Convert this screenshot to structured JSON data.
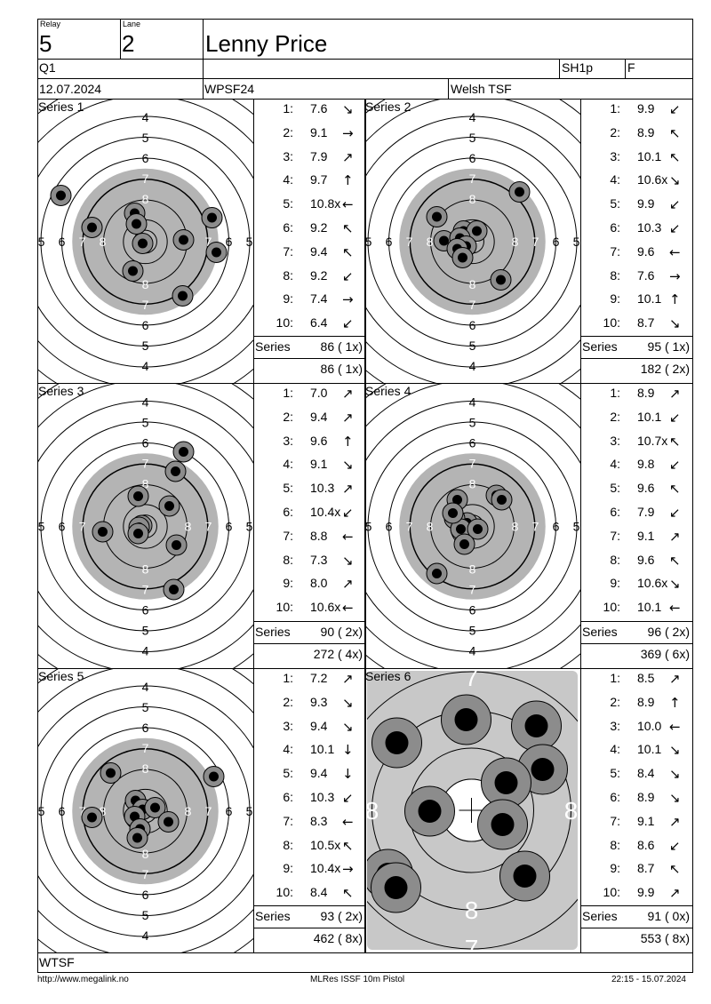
{
  "header": {
    "relay_label": "Relay",
    "relay": "5",
    "lane_label": "Lane",
    "lane": "2",
    "shooter": "Lenny Price",
    "class": "Q1",
    "discipline_code": "SH1p",
    "flag": "F",
    "date": "12.07.2024",
    "event": "WPSF24",
    "club": "Welsh TSF"
  },
  "series": [
    {
      "title": "Series 1",
      "shots": [
        {
          "no": "1:",
          "val": "7.6",
          "arrow": "↘"
        },
        {
          "no": "2:",
          "val": "9.1",
          "arrow": "→"
        },
        {
          "no": "3:",
          "val": "7.9",
          "arrow": "↗"
        },
        {
          "no": "4:",
          "val": "9.7",
          "arrow": "↑"
        },
        {
          "no": "5:",
          "val": "10.8x",
          "arrow": "←"
        },
        {
          "no": "6:",
          "val": "9.2",
          "arrow": "↖"
        },
        {
          "no": "7:",
          "val": "9.4",
          "arrow": "↖"
        },
        {
          "no": "8:",
          "val": "9.2",
          "arrow": "↙"
        },
        {
          "no": "9:",
          "val": "7.4",
          "arrow": "→"
        },
        {
          "no": "10:",
          "val": "6.4",
          "arrow": "↙"
        }
      ],
      "series_label": "Series",
      "series_total": "86 ( 1x)",
      "running_total": "86 ( 1x)"
    },
    {
      "title": "Series 2",
      "shots": [
        {
          "no": "1:",
          "val": "9.9",
          "arrow": "↙"
        },
        {
          "no": "2:",
          "val": "8.9",
          "arrow": "↖"
        },
        {
          "no": "3:",
          "val": "10.1",
          "arrow": "↖"
        },
        {
          "no": "4:",
          "val": "10.6x",
          "arrow": "↘"
        },
        {
          "no": "5:",
          "val": "9.9",
          "arrow": "↙"
        },
        {
          "no": "6:",
          "val": "10.3",
          "arrow": "↙"
        },
        {
          "no": "7:",
          "val": "9.6",
          "arrow": "←"
        },
        {
          "no": "8:",
          "val": "7.6",
          "arrow": "→"
        },
        {
          "no": "9:",
          "val": "10.1",
          "arrow": "↑"
        },
        {
          "no": "10:",
          "val": "8.7",
          "arrow": "↘"
        }
      ],
      "series_label": "Series",
      "series_total": "95 ( 1x)",
      "running_total": "182 ( 2x)"
    },
    {
      "title": "Series 3",
      "shots": [
        {
          "no": "1:",
          "val": "7.0",
          "arrow": "↗"
        },
        {
          "no": "2:",
          "val": "9.4",
          "arrow": "↗"
        },
        {
          "no": "3:",
          "val": "9.6",
          "arrow": "↑"
        },
        {
          "no": "4:",
          "val": "9.1",
          "arrow": "↘"
        },
        {
          "no": "5:",
          "val": "10.3",
          "arrow": "↗"
        },
        {
          "no": "6:",
          "val": "10.4x",
          "arrow": "↙"
        },
        {
          "no": "7:",
          "val": "8.8",
          "arrow": "←"
        },
        {
          "no": "8:",
          "val": "7.3",
          "arrow": "↘"
        },
        {
          "no": "9:",
          "val": "8.0",
          "arrow": "↗"
        },
        {
          "no": "10:",
          "val": "10.6x",
          "arrow": "←"
        }
      ],
      "series_label": "Series",
      "series_total": "90 ( 2x)",
      "running_total": "272 ( 4x)"
    },
    {
      "title": "Series 4",
      "shots": [
        {
          "no": "1:",
          "val": "8.9",
          "arrow": "↗"
        },
        {
          "no": "2:",
          "val": "10.1",
          "arrow": "↙"
        },
        {
          "no": "3:",
          "val": "10.7x",
          "arrow": "↖"
        },
        {
          "no": "4:",
          "val": "9.8",
          "arrow": "↙"
        },
        {
          "no": "5:",
          "val": "9.6",
          "arrow": "↖"
        },
        {
          "no": "6:",
          "val": "7.9",
          "arrow": "↙"
        },
        {
          "no": "7:",
          "val": "9.1",
          "arrow": "↗"
        },
        {
          "no": "8:",
          "val": "9.6",
          "arrow": "↖"
        },
        {
          "no": "9:",
          "val": "10.6x",
          "arrow": "↘"
        },
        {
          "no": "10:",
          "val": "10.1",
          "arrow": "←"
        }
      ],
      "series_label": "Series",
      "series_total": "96 ( 2x)",
      "running_total": "369 ( 6x)"
    },
    {
      "title": "Series 5",
      "shots": [
        {
          "no": "1:",
          "val": "7.2",
          "arrow": "↗"
        },
        {
          "no": "2:",
          "val": "9.3",
          "arrow": "↘"
        },
        {
          "no": "3:",
          "val": "9.4",
          "arrow": "↘"
        },
        {
          "no": "4:",
          "val": "10.1",
          "arrow": "↓"
        },
        {
          "no": "5:",
          "val": "9.4",
          "arrow": "↓"
        },
        {
          "no": "6:",
          "val": "10.3",
          "arrow": "↙"
        },
        {
          "no": "7:",
          "val": "8.3",
          "arrow": "←"
        },
        {
          "no": "8:",
          "val": "10.5x",
          "arrow": "↖"
        },
        {
          "no": "9:",
          "val": "10.4x",
          "arrow": "→"
        },
        {
          "no": "10:",
          "val": "8.4",
          "arrow": "↖"
        }
      ],
      "series_label": "Series",
      "series_total": "93 ( 2x)",
      "running_total": "462 ( 8x)"
    },
    {
      "title": "Series 6",
      "shots": [
        {
          "no": "1:",
          "val": "8.5",
          "arrow": "↗"
        },
        {
          "no": "2:",
          "val": "8.9",
          "arrow": "↑"
        },
        {
          "no": "3:",
          "val": "10.0",
          "arrow": "←"
        },
        {
          "no": "4:",
          "val": "10.1",
          "arrow": "↘"
        },
        {
          "no": "5:",
          "val": "8.4",
          "arrow": "↘"
        },
        {
          "no": "6:",
          "val": "8.9",
          "arrow": "↘"
        },
        {
          "no": "7:",
          "val": "9.1",
          "arrow": "↗"
        },
        {
          "no": "8:",
          "val": "8.6",
          "arrow": "↙"
        },
        {
          "no": "9:",
          "val": "8.7",
          "arrow": "↖"
        },
        {
          "no": "10:",
          "val": "9.9",
          "arrow": "↗"
        }
      ],
      "series_label": "Series",
      "series_total": "91 ( 0x)",
      "running_total": "553 ( 8x)"
    }
  ],
  "target_ring_labels": {
    "rings": [
      "4",
      "5",
      "6",
      "7",
      "8"
    ],
    "zoom_rings": [
      "7",
      "8"
    ]
  },
  "footer": {
    "club_code": "WTSF",
    "website": "http://www.megalink.no",
    "software": "MLRes ISSF 10m Pistol",
    "printed": "22:15 - 15.07.2024"
  },
  "colors": {
    "black_area": "#b4b4b4",
    "shot_ring": "#8c8c8c",
    "shot_core": "#000000",
    "zoom_background": "#c8c8c8"
  }
}
